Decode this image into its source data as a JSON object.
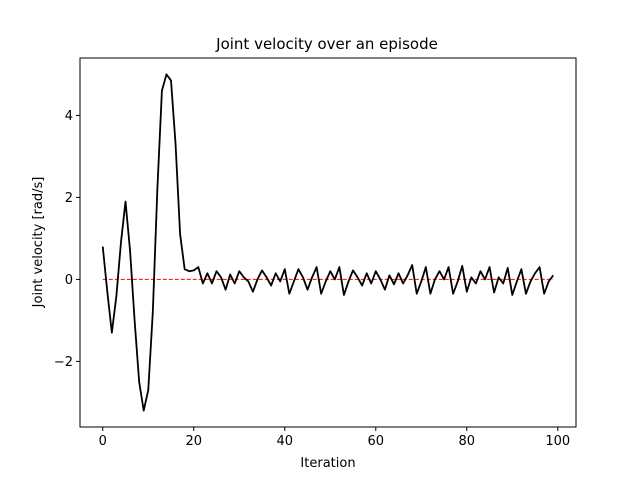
{
  "chart_data": {
    "type": "line",
    "title": "Joint velocity over an episode",
    "xlabel": "Iteration",
    "ylabel": "Joint velocity [rad/s]",
    "xlim": [
      -5,
      104
    ],
    "ylim": [
      -3.6,
      5.4
    ],
    "xticks": [
      0,
      20,
      40,
      60,
      80,
      100
    ],
    "yticks": [
      -2,
      0,
      2,
      4
    ],
    "ytick_labels": [
      "−2",
      "0",
      "2",
      "4"
    ],
    "grid": false,
    "legend": "none",
    "series": [
      {
        "color": "#000000",
        "style": "solid",
        "x": [
          0,
          1,
          2,
          3,
          4,
          5,
          6,
          7,
          8,
          9,
          10,
          11,
          12,
          13,
          14,
          15,
          16,
          17,
          18,
          19,
          20,
          21,
          22,
          23,
          24,
          25,
          26,
          27,
          28,
          29,
          30,
          31,
          32,
          33,
          34,
          35,
          36,
          37,
          38,
          39,
          40,
          41,
          42,
          43,
          44,
          45,
          46,
          47,
          48,
          49,
          50,
          51,
          52,
          53,
          54,
          55,
          56,
          57,
          58,
          59,
          60,
          61,
          62,
          63,
          64,
          65,
          66,
          67,
          68,
          69,
          70,
          71,
          72,
          73,
          74,
          75,
          76,
          77,
          78,
          79,
          80,
          81,
          82,
          83,
          84,
          85,
          86,
          87,
          88,
          89,
          90,
          91,
          92,
          93,
          94,
          95,
          96,
          97,
          98,
          99
        ],
        "y": [
          0.8,
          -0.3,
          -1.3,
          -0.4,
          0.9,
          1.9,
          0.7,
          -1.0,
          -2.5,
          -3.2,
          -2.7,
          -0.8,
          2.2,
          4.6,
          5.0,
          4.85,
          3.3,
          1.1,
          0.25,
          0.2,
          0.22,
          0.3,
          -0.1,
          0.15,
          -0.1,
          0.2,
          0.05,
          -0.25,
          0.12,
          -0.1,
          0.2,
          0.05,
          -0.05,
          -0.3,
          0.0,
          0.22,
          0.05,
          -0.15,
          0.15,
          -0.05,
          0.25,
          -0.35,
          -0.05,
          0.25,
          0.05,
          -0.25,
          0.05,
          0.3,
          -0.35,
          -0.05,
          0.2,
          0.0,
          0.3,
          -0.38,
          -0.05,
          0.22,
          0.05,
          -0.15,
          0.15,
          -0.1,
          0.2,
          0.0,
          -0.25,
          0.1,
          -0.12,
          0.15,
          -0.1,
          0.1,
          0.35,
          -0.35,
          -0.05,
          0.3,
          -0.35,
          0.0,
          0.2,
          0.0,
          0.3,
          -0.35,
          -0.05,
          0.33,
          -0.3,
          0.05,
          -0.1,
          0.2,
          0.0,
          0.3,
          -0.32,
          0.05,
          -0.1,
          0.28,
          -0.38,
          -0.05,
          0.25,
          -0.35,
          -0.05,
          0.15,
          0.3,
          -0.35,
          -0.05,
          0.1
        ]
      },
      {
        "color": "#ff0000",
        "style": "dashed",
        "x": [
          0,
          99
        ],
        "y": [
          0,
          0
        ]
      }
    ]
  }
}
